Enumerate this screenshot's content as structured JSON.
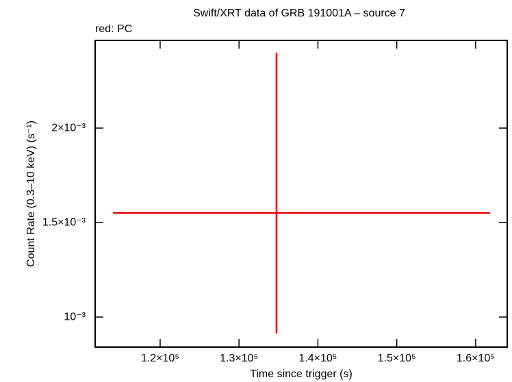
{
  "chart_data": {
    "type": "scatter",
    "title": "Swift/XRT data of GRB 191001A – source 7",
    "subtitle": "red: PC",
    "x_label": "Time since trigger (s)",
    "y_label": "Count Rate (0.3–10 keV) (s⁻¹)",
    "xlim": [
      111760,
      164000
    ],
    "ylim": [
      0.000841,
      0.002464
    ],
    "xticks": [
      {
        "value": 120000,
        "label": "1.2×10⁵"
      },
      {
        "value": 130000,
        "label": "1.3×10⁵"
      },
      {
        "value": 140000,
        "label": "1.4×10⁵"
      },
      {
        "value": 150000,
        "label": "1.5×10⁵"
      },
      {
        "value": 160000,
        "label": "1.6×10⁵"
      }
    ],
    "yticks": [
      {
        "value": 0.001,
        "label": "10⁻³"
      },
      {
        "value": 0.0015,
        "label": "1.5×10⁻³"
      },
      {
        "value": 0.002,
        "label": "2×10⁻³"
      }
    ],
    "series": [
      {
        "color": "#ee0000",
        "x": [
          134750
        ],
        "x_err_minus": [
          20737
        ],
        "x_err_plus": [
          27072
        ],
        "values": [
          0.0015507
        ],
        "y_err_minus": [
          0.000638
        ],
        "y_err_plus": [
          0.000848
        ]
      }
    ]
  }
}
